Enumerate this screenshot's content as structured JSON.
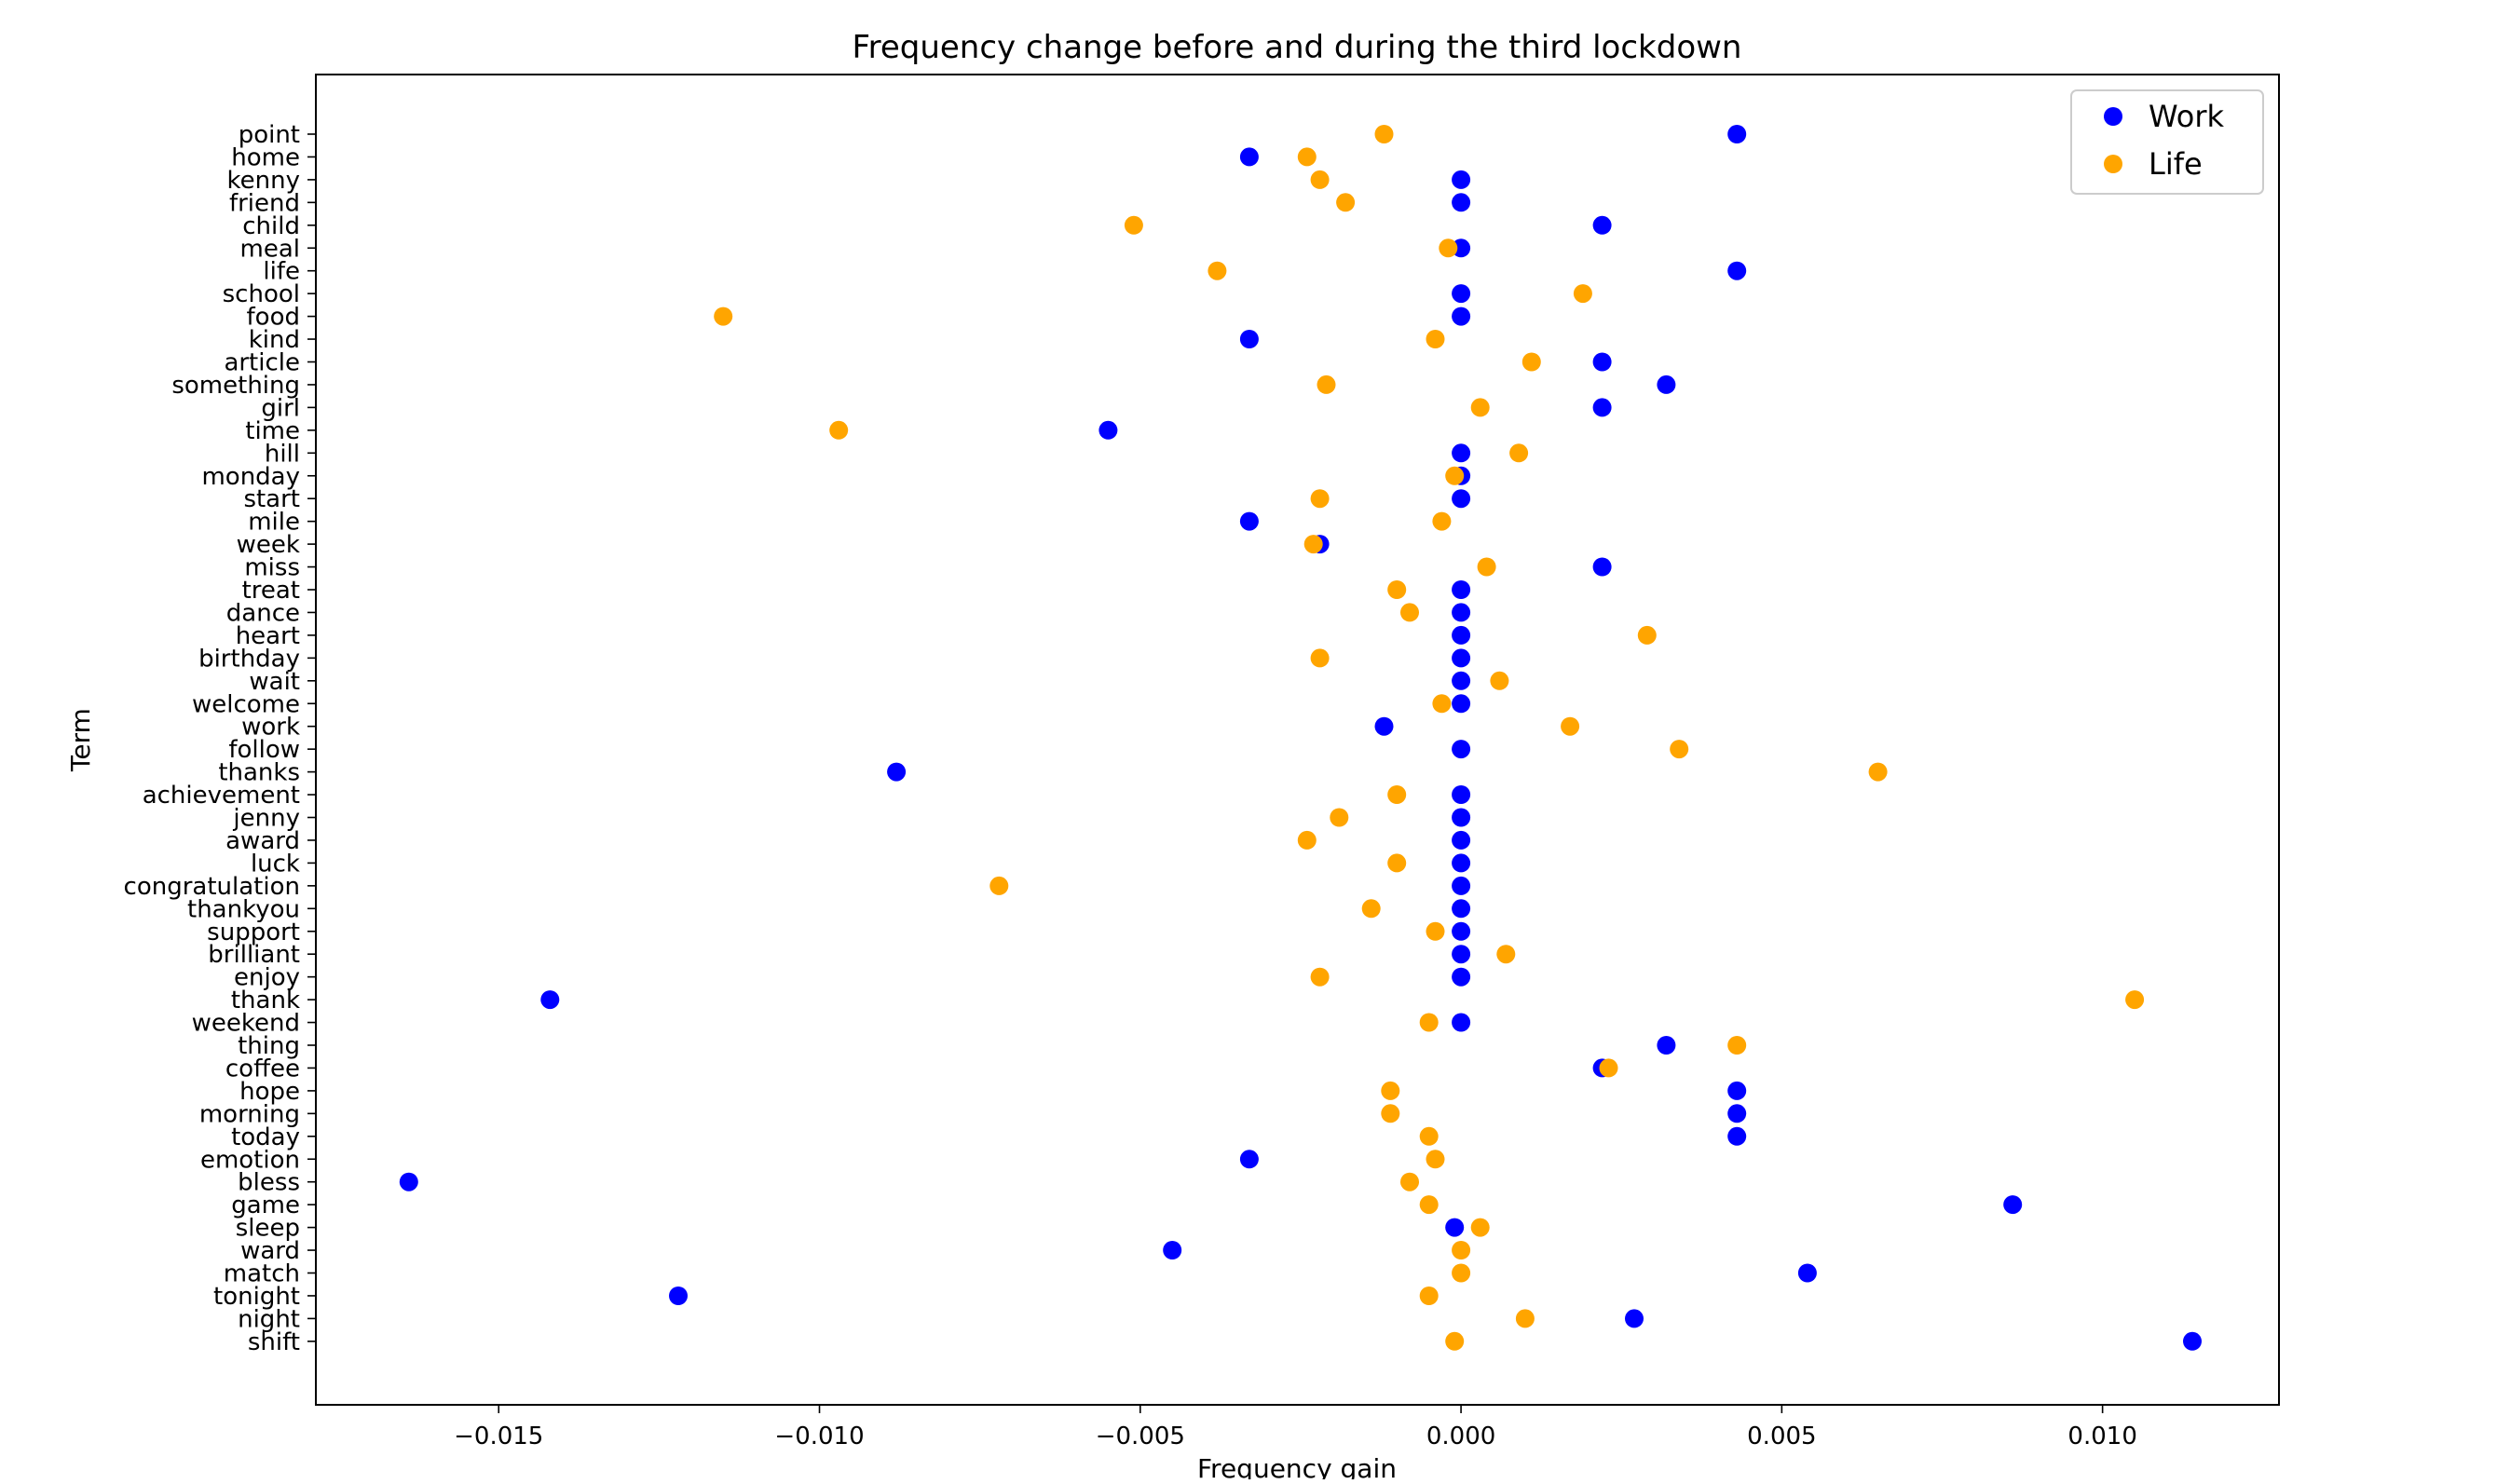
{
  "chart_data": {
    "type": "scatter",
    "title": "Frequency change before and during the third lockdown",
    "xlabel": "Frequency gain",
    "ylabel": "Term",
    "xlim": [
      -0.01785,
      0.01275
    ],
    "xticks": [
      -0.015,
      -0.01,
      -0.005,
      0.0,
      0.005,
      0.01
    ],
    "xtick_labels": [
      "−0.015",
      "−0.010",
      "−0.005",
      "0.000",
      "0.005",
      "0.010"
    ],
    "legend_position": "top-right",
    "grid": false,
    "categories": [
      "point",
      "home",
      "kenny",
      "friend",
      "child",
      "meal",
      "life",
      "school",
      "food",
      "kind",
      "article",
      "something",
      "girl",
      "time",
      "hill",
      "monday",
      "start",
      "mile",
      "week",
      "miss",
      "treat",
      "dance",
      "heart",
      "birthday",
      "wait",
      "welcome",
      "work",
      "follow",
      "thanks",
      "achievement",
      "jenny",
      "award",
      "luck",
      "congratulation",
      "thankyou",
      "support",
      "brilliant",
      "enjoy",
      "thank",
      "weekend",
      "thing",
      "coffee",
      "hope",
      "morning",
      "today",
      "emotion",
      "bless",
      "game",
      "sleep",
      "ward",
      "match",
      "tonight",
      "night",
      "shift"
    ],
    "series": [
      {
        "name": "Work",
        "color": "#0000ff",
        "values": [
          0.0043,
          -0.0033,
          0.0,
          0.0,
          0.0022,
          0.0,
          0.0043,
          0.0,
          0.0,
          -0.0033,
          0.0022,
          0.0032,
          0.0022,
          -0.0055,
          0.0,
          0.0,
          0.0,
          -0.0033,
          -0.0022,
          0.0022,
          0.0,
          0.0,
          0.0,
          0.0,
          0.0,
          0.0,
          -0.0012,
          0.0,
          -0.0088,
          0.0,
          0.0,
          0.0,
          0.0,
          0.0,
          0.0,
          0.0,
          0.0,
          0.0,
          -0.0142,
          0.0,
          0.0032,
          0.0022,
          0.0043,
          0.0043,
          0.0043,
          -0.0033,
          -0.0164,
          0.0086,
          -0.0001,
          -0.0045,
          0.0054,
          -0.0122,
          0.0027,
          0.0114
        ]
      },
      {
        "name": "Life",
        "color": "#ffa500",
        "values": [
          -0.0012,
          -0.0024,
          -0.0022,
          -0.0018,
          -0.0051,
          -0.0002,
          -0.0038,
          0.0019,
          -0.0115,
          -0.0004,
          0.0011,
          -0.0021,
          0.0003,
          -0.0097,
          0.0009,
          -0.0001,
          -0.0022,
          -0.0003,
          -0.0023,
          0.0004,
          -0.001,
          -0.0008,
          0.0029,
          -0.0022,
          0.0006,
          -0.0003,
          0.0017,
          0.0034,
          0.0065,
          -0.001,
          -0.0019,
          -0.0024,
          -0.001,
          -0.0072,
          -0.0014,
          -0.0004,
          0.0007,
          -0.0022,
          0.0105,
          -0.0005,
          0.0043,
          0.0023,
          -0.0011,
          -0.0011,
          -0.0005,
          -0.0004,
          -0.0008,
          -0.0005,
          0.0003,
          0.0,
          0.0,
          -0.0005,
          0.001,
          -0.0001
        ]
      }
    ]
  }
}
